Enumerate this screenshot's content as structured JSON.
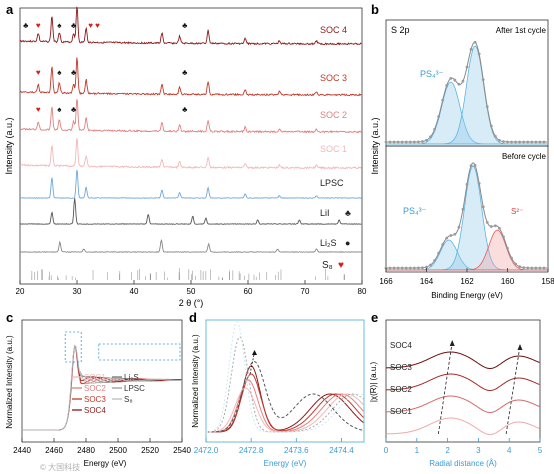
{
  "chart_data": [
    {
      "panel": "a",
      "type": "line",
      "xlabel": "2 θ (°)",
      "ylabel": "Intensity (a.u.)",
      "xlim": [
        20,
        80
      ],
      "xticks": [
        20,
        30,
        40,
        50,
        60,
        70,
        80
      ],
      "peaks": [
        25.6,
        30.0,
        31.6,
        44.9,
        48.0,
        53.0,
        59.5,
        65.5,
        72.0
      ],
      "series": [
        {
          "name": "SOC 4",
          "color": "#8b1a1a"
        },
        {
          "name": "SOC 3",
          "color": "#c0392b"
        },
        {
          "name": "SOC 2",
          "color": "#e08080"
        },
        {
          "name": "SOC 1",
          "color": "#f2b8b8"
        },
        {
          "name": "LPSC",
          "color": "#6fa8dc"
        },
        {
          "name": "LiI",
          "color": "#555555",
          "marker": "♣"
        },
        {
          "name": "Li₂S",
          "color": "#888888",
          "marker": "●"
        },
        {
          "name": "S₈",
          "color": "#999999",
          "marker": "♥"
        }
      ],
      "markers": [
        {
          "symbol": "♣",
          "x": 21.0,
          "row": "SOC 4"
        },
        {
          "symbol": "♥",
          "x": 23.2,
          "row": "SOC 4"
        },
        {
          "symbol": "♠",
          "x": 26.9,
          "row": "SOC 4"
        },
        {
          "symbol": "♣",
          "x": 29.4,
          "row": "SOC 4"
        },
        {
          "symbol": "♥",
          "x": 32.4,
          "row": "SOC 4"
        },
        {
          "symbol": "♥",
          "x": 33.6,
          "row": "SOC 4"
        },
        {
          "symbol": "♣",
          "x": 48.9,
          "row": "SOC 4"
        },
        {
          "symbol": "♥",
          "x": 23.2,
          "row": "SOC 3"
        },
        {
          "symbol": "♠",
          "x": 26.9,
          "row": "SOC 3"
        },
        {
          "symbol": "♣",
          "x": 29.4,
          "row": "SOC 3"
        },
        {
          "symbol": "♣",
          "x": 48.9,
          "row": "SOC 3"
        },
        {
          "symbol": "♥",
          "x": 23.2,
          "row": "SOC 2"
        },
        {
          "symbol": "♠",
          "x": 26.9,
          "row": "SOC 2"
        },
        {
          "symbol": "♣",
          "x": 29.4,
          "row": "SOC 2"
        },
        {
          "symbol": "♣",
          "x": 48.9,
          "row": "SOC 2"
        }
      ]
    },
    {
      "panel": "b",
      "type": "line",
      "title": "S 2p",
      "xlabel": "Binding Energy (eV)",
      "ylabel": "Intensity (a.u.)",
      "xlim": [
        166,
        158
      ],
      "xticks": [
        166,
        164,
        162,
        160,
        158
      ],
      "subpanels": [
        {
          "label": "After 1st cycle",
          "components": [
            {
              "name": "PS₄³⁻",
              "centers": [
                162.8,
                161.6
              ]
            }
          ]
        },
        {
          "label": "Before cycle",
          "components": [
            {
              "name": "PS₄³⁻",
              "centers": [
                162.9,
                161.7
              ]
            },
            {
              "name": "S²⁻",
              "center": 160.5
            }
          ]
        }
      ]
    },
    {
      "panel": "c",
      "type": "line",
      "xlabel": "Energy (eV)",
      "ylabel": "Normalized Intensity (a.u.)",
      "xlim": [
        2440,
        2540
      ],
      "xticks": [
        2440,
        2460,
        2480,
        2500,
        2520,
        2540
      ],
      "series": [
        "SOC1",
        "SOC2",
        "SOC3",
        "SOC4",
        "Li₂S",
        "LPSC",
        "S₈"
      ]
    },
    {
      "panel": "d",
      "type": "line",
      "xlabel": "Energy (eV)",
      "ylabel": "Normalized Intensity (a.u.)",
      "xlim": [
        2472.0,
        2474.8
      ],
      "xticks": [
        2472.0,
        2472.8,
        2473.6,
        2474.4
      ]
    },
    {
      "panel": "e",
      "type": "line",
      "xlabel": "Radial distance (Å)",
      "ylabel": "|χ(R)| (a.u.)",
      "xlim": [
        0,
        5
      ],
      "xticks": [
        0,
        1,
        2,
        3,
        4,
        5
      ],
      "series": [
        "SOC4",
        "SOC3",
        "SOC2",
        "SOC1"
      ]
    }
  ],
  "labels": {
    "a": "a",
    "b": "b",
    "c": "c",
    "d": "d",
    "e": "e",
    "a_xlabel": "2 θ (°)",
    "a_ylabel": "Intensity (a.u.)",
    "b_title": "S 2p",
    "b_after": "After 1st cycle",
    "b_before": "Before cycle",
    "b_ylabel": "Intensity (a.u.)",
    "b_xlabel": "Binding Energy (eV)",
    "b_ps4": "PS₄³⁻",
    "b_s2": "S²⁻",
    "c_xlabel": "Energy (eV)",
    "c_ylabel": "Normalized Intensity (a.u.)",
    "d_xlabel": "Energy (eV)",
    "d_ylabel": "Normalized Intensity (a.u.)",
    "e_xlabel": "Radial distance (Å)",
    "e_ylabel": "|χ(R)| (a.u.)",
    "watermark": "© 大国科技"
  },
  "colors": {
    "soc4": "#8b1a1a",
    "soc3": "#c0392b",
    "soc2": "#e08080",
    "soc1": "#f2b8b8",
    "lpsc": "#6fa8dc",
    "gray": "#777777",
    "ps4": "#5bb4e0",
    "s2": "#e05a5a"
  }
}
